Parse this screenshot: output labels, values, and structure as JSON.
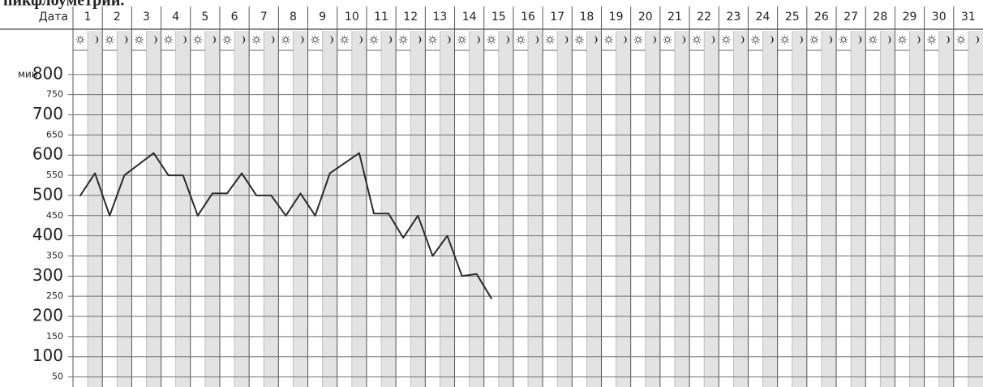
{
  "chart_data": {
    "type": "line",
    "title": "пикфлоуметрии.",
    "header_label": "Дата",
    "y_axis_label": "мин",
    "categories": [
      "1",
      "2",
      "3",
      "4",
      "5",
      "6",
      "7",
      "8",
      "9",
      "10",
      "11",
      "12",
      "13",
      "14",
      "15",
      "16",
      "17",
      "18",
      "19",
      "20",
      "21",
      "22",
      "23",
      "24",
      "25",
      "26",
      "27",
      "28",
      "29",
      "30",
      "31"
    ],
    "series": [
      {
        "color": "#2b2b2b",
        "x": [
          1,
          1.5,
          2,
          2.5,
          3.5,
          4,
          4.5,
          5,
          5.5,
          6,
          6.5,
          7,
          7.5,
          8,
          8.5,
          9,
          9.5,
          10.5,
          11,
          11.5,
          12,
          12.5,
          13,
          13.5,
          14,
          14.5,
          15
        ],
        "values": [
          500,
          555,
          450,
          550,
          605,
          550,
          550,
          450,
          505,
          505,
          555,
          500,
          500,
          450,
          505,
          450,
          555,
          605,
          455,
          455,
          395,
          450,
          350,
          400,
          300,
          305,
          245
        ]
      }
    ],
    "ylim": [
      25,
      860
    ],
    "yticks": [
      50,
      100,
      150,
      200,
      250,
      300,
      350,
      400,
      450,
      500,
      550,
      600,
      650,
      700,
      750,
      800
    ],
    "grid": true
  }
}
